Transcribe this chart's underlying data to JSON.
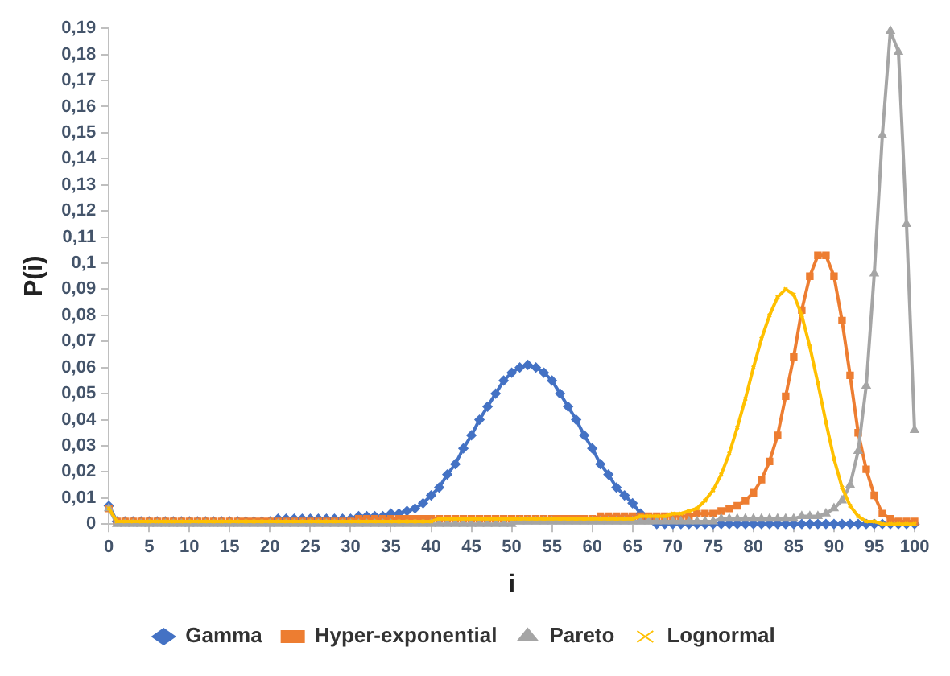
{
  "chart_data": {
    "type": "line",
    "xlabel": "i",
    "ylabel": "P(i)",
    "x": [
      0,
      1,
      2,
      3,
      4,
      5,
      6,
      7,
      8,
      9,
      10,
      11,
      12,
      13,
      14,
      15,
      16,
      17,
      18,
      19,
      20,
      21,
      22,
      23,
      24,
      25,
      26,
      27,
      28,
      29,
      30,
      31,
      32,
      33,
      34,
      35,
      36,
      37,
      38,
      39,
      40,
      41,
      42,
      43,
      44,
      45,
      46,
      47,
      48,
      49,
      50,
      51,
      52,
      53,
      54,
      55,
      56,
      57,
      58,
      59,
      60,
      61,
      62,
      63,
      64,
      65,
      66,
      67,
      68,
      69,
      70,
      71,
      72,
      73,
      74,
      75,
      76,
      77,
      78,
      79,
      80,
      81,
      82,
      83,
      84,
      85,
      86,
      87,
      88,
      89,
      90,
      91,
      92,
      93,
      94,
      95,
      96,
      97,
      98,
      99,
      100
    ],
    "series": [
      {
        "name": "Gamma",
        "color": "#4472c4",
        "marker": "diamond",
        "values": [
          0.007,
          0.001,
          0.001,
          0.001,
          0.001,
          0.001,
          0.001,
          0.001,
          0.001,
          0.001,
          0.001,
          0.001,
          0.001,
          0.001,
          0.001,
          0.001,
          0.001,
          0.001,
          0.001,
          0.001,
          0.001,
          0.002,
          0.002,
          0.002,
          0.002,
          0.002,
          0.002,
          0.002,
          0.002,
          0.002,
          0.002,
          0.003,
          0.003,
          0.003,
          0.003,
          0.004,
          0.004,
          0.005,
          0.006,
          0.008,
          0.011,
          0.014,
          0.019,
          0.023,
          0.029,
          0.034,
          0.04,
          0.045,
          0.05,
          0.055,
          0.058,
          0.06,
          0.061,
          0.06,
          0.058,
          0.055,
          0.05,
          0.045,
          0.04,
          0.034,
          0.029,
          0.023,
          0.019,
          0.014,
          0.011,
          0.008,
          0.004,
          0.002,
          0,
          0,
          0,
          0,
          0,
          0,
          0,
          0,
          0,
          0,
          0,
          0,
          0,
          0,
          0,
          0,
          0,
          0,
          0,
          0,
          0,
          0,
          0,
          0,
          0,
          0,
          0,
          0,
          0,
          0,
          0,
          0,
          0
        ]
      },
      {
        "name": "Hyper-exponential",
        "color": "#ed7d31",
        "marker": "square",
        "values": [
          0.006,
          0.001,
          0.001,
          0.001,
          0.001,
          0.001,
          0.001,
          0.001,
          0.001,
          0.001,
          0.001,
          0.001,
          0.001,
          0.001,
          0.001,
          0.001,
          0.001,
          0.001,
          0.001,
          0.001,
          0.001,
          0.001,
          0.001,
          0.001,
          0.001,
          0.001,
          0.001,
          0.001,
          0.001,
          0.001,
          0.001,
          0.002,
          0.002,
          0.002,
          0.002,
          0.002,
          0.002,
          0.002,
          0.002,
          0.002,
          0.002,
          0.002,
          0.002,
          0.002,
          0.002,
          0.002,
          0.002,
          0.002,
          0.002,
          0.002,
          0.002,
          0.002,
          0.002,
          0.002,
          0.002,
          0.002,
          0.002,
          0.002,
          0.002,
          0.002,
          0.002,
          0.003,
          0.003,
          0.003,
          0.003,
          0.003,
          0.003,
          0.003,
          0.003,
          0.003,
          0.003,
          0.003,
          0.003,
          0.004,
          0.004,
          0.004,
          0.005,
          0.006,
          0.007,
          0.009,
          0.012,
          0.017,
          0.024,
          0.034,
          0.049,
          0.064,
          0.082,
          0.095,
          0.103,
          0.103,
          0.095,
          0.078,
          0.057,
          0.035,
          0.021,
          0.011,
          0.004,
          0.002,
          0.001,
          0.001,
          0.001
        ]
      },
      {
        "name": "Pareto",
        "color": "#a5a5a5",
        "marker": "triangle",
        "values": [
          0.006,
          0,
          0,
          0,
          0,
          0,
          0,
          0,
          0,
          0,
          0,
          0,
          0,
          0,
          0,
          0,
          0,
          0,
          0,
          0,
          0,
          0,
          0,
          0,
          0,
          0,
          0,
          0,
          0,
          0,
          0,
          0,
          0,
          0,
          0,
          0,
          0,
          0,
          0,
          0,
          0,
          0,
          0,
          0,
          0,
          0,
          0,
          0,
          0,
          0,
          0,
          0.001,
          0.001,
          0.001,
          0.001,
          0.001,
          0.001,
          0.001,
          0.001,
          0.001,
          0.001,
          0.001,
          0.001,
          0.001,
          0.001,
          0.001,
          0.001,
          0.001,
          0.001,
          0.001,
          0.001,
          0.001,
          0.001,
          0.001,
          0.001,
          0.001,
          0.002,
          0.002,
          0.002,
          0.002,
          0.002,
          0.002,
          0.002,
          0.002,
          0.002,
          0.002,
          0.003,
          0.003,
          0.003,
          0.004,
          0.006,
          0.009,
          0.015,
          0.028,
          0.053,
          0.096,
          0.149,
          0.189,
          0.181,
          0.115,
          0.036
        ]
      },
      {
        "name": "Lognormal",
        "color": "#ffc000",
        "marker": "cross",
        "values": [
          0.006,
          0.001,
          0.001,
          0.001,
          0.001,
          0.001,
          0.001,
          0.001,
          0.001,
          0.001,
          0.001,
          0.001,
          0.001,
          0.001,
          0.001,
          0.001,
          0.001,
          0.001,
          0.001,
          0.001,
          0.001,
          0.001,
          0.001,
          0.001,
          0.001,
          0.001,
          0.001,
          0.001,
          0.001,
          0.001,
          0.001,
          0.001,
          0.001,
          0.001,
          0.001,
          0.001,
          0.001,
          0.001,
          0.001,
          0.001,
          0.001,
          0.002,
          0.002,
          0.002,
          0.002,
          0.002,
          0.002,
          0.002,
          0.002,
          0.002,
          0.002,
          0.002,
          0.002,
          0.002,
          0.002,
          0.002,
          0.002,
          0.002,
          0.002,
          0.002,
          0.002,
          0.002,
          0.002,
          0.002,
          0.002,
          0.002,
          0.003,
          0.003,
          0.003,
          0.003,
          0.004,
          0.004,
          0.005,
          0.006,
          0.009,
          0.013,
          0.019,
          0.027,
          0.037,
          0.048,
          0.06,
          0.071,
          0.08,
          0.087,
          0.09,
          0.088,
          0.08,
          0.068,
          0.054,
          0.039,
          0.025,
          0.014,
          0.007,
          0.003,
          0.001,
          0.001,
          0,
          0,
          0,
          0,
          0
        ]
      }
    ],
    "xlim": [
      0,
      100
    ],
    "xticks": [
      0,
      5,
      10,
      15,
      20,
      25,
      30,
      35,
      40,
      45,
      50,
      55,
      60,
      65,
      70,
      75,
      80,
      85,
      90,
      95,
      100
    ],
    "ylim": [
      0,
      0.19
    ],
    "yticks": [
      0,
      {
        "value": 0.01,
        "label": "0,01"
      },
      {
        "value": 0.02,
        "label": "0,02"
      },
      {
        "value": 0.03,
        "label": "0,03"
      },
      {
        "value": 0.04,
        "label": "0,04"
      },
      {
        "value": 0.05,
        "label": "0,05"
      },
      {
        "value": 0.06,
        "label": "0,06"
      },
      {
        "value": 0.07,
        "label": "0,07"
      },
      {
        "value": 0.08,
        "label": "0,08"
      },
      {
        "value": 0.09,
        "label": "0,09"
      },
      {
        "value": 0.1,
        "label": "0,1"
      },
      {
        "value": 0.11,
        "label": "0,11"
      },
      {
        "value": 0.12,
        "label": "0,12"
      },
      {
        "value": 0.13,
        "label": "0,13"
      },
      {
        "value": 0.14,
        "label": "0,14"
      },
      {
        "value": 0.15,
        "label": "0,15"
      },
      {
        "value": 0.16,
        "label": "0,16"
      },
      {
        "value": 0.17,
        "label": "0,17"
      },
      {
        "value": 0.18,
        "label": "0,18"
      },
      {
        "value": 0.19,
        "label": "0,19"
      }
    ],
    "grid": false,
    "legend": "bottom"
  }
}
